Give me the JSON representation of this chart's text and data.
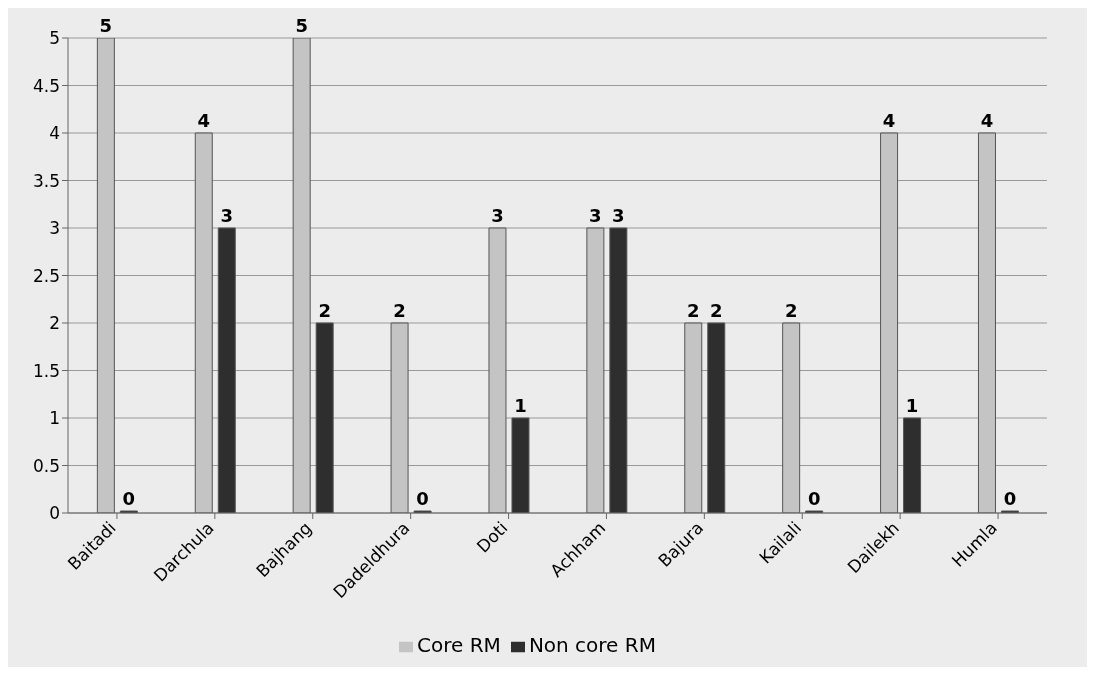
{
  "chart_data": {
    "type": "bar",
    "categories": [
      "Baitadi",
      "Darchula",
      "Bajhang",
      "Dadeldhura",
      "Doti",
      "Achham",
      "Bajura",
      "Kailali",
      "Dailekh",
      "Humla"
    ],
    "series": [
      {
        "name": "Core RM",
        "color": "#c4c4c4",
        "values": [
          5,
          4,
          5,
          2,
          3,
          3,
          2,
          2,
          4,
          4
        ]
      },
      {
        "name": "Non core RM",
        "color": "#2e2e2e",
        "values": [
          0,
          3,
          2,
          0,
          1,
          3,
          2,
          0,
          1,
          0
        ]
      }
    ],
    "ylim": [
      0,
      5
    ],
    "yticks": [
      0,
      0.5,
      1,
      1.5,
      2,
      2.5,
      3,
      3.5,
      4,
      4.5,
      5
    ],
    "grid": "y",
    "legend": "bottom",
    "data_labels": true
  }
}
